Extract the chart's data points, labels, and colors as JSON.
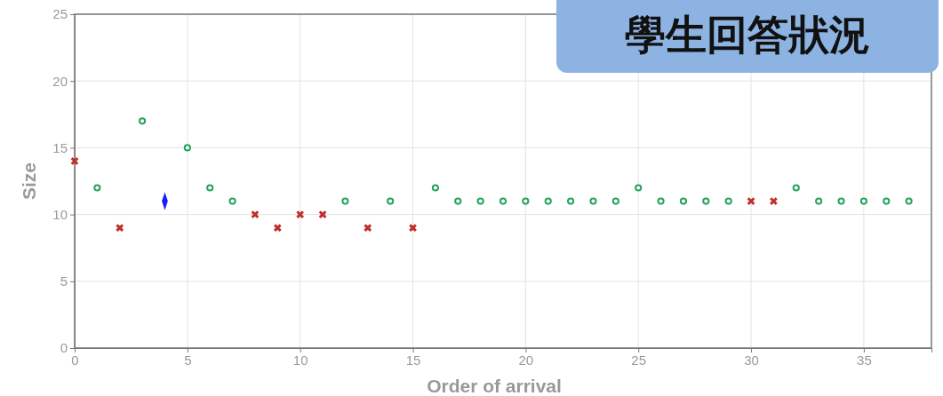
{
  "chart_data": {
    "type": "scatter",
    "title": "學生回答狀況",
    "xlabel": "Order of arrival",
    "ylabel": "Size",
    "xlim": [
      0,
      38
    ],
    "xticks": [
      0,
      5,
      10,
      15,
      20,
      25,
      30,
      35
    ],
    "ylim": [
      0,
      25
    ],
    "yticks": [
      0,
      5,
      10,
      15,
      20,
      25
    ],
    "grid": true,
    "series": [
      {
        "color": "#27a35a",
        "marker": "circle",
        "x": [
          1,
          3,
          5,
          6,
          7,
          12,
          14,
          16,
          17,
          18,
          19,
          20,
          21,
          22,
          23,
          24,
          25,
          26,
          27,
          28,
          29,
          32,
          33,
          34,
          35,
          36,
          37
        ],
        "values": [
          12,
          17,
          15,
          12,
          11,
          11,
          11,
          12,
          11,
          11,
          11,
          11,
          11,
          11,
          11,
          11,
          12,
          11,
          11,
          11,
          11,
          12,
          11,
          11,
          11,
          11,
          11
        ]
      },
      {
        "color": "#c0302a",
        "marker": "cross",
        "x": [
          0,
          2,
          8,
          9,
          10,
          11,
          13,
          15,
          30,
          31
        ],
        "values": [
          14,
          9,
          10,
          9,
          10,
          10,
          9,
          9,
          11,
          11
        ]
      },
      {
        "color": "#1a1aff",
        "marker": "diamond",
        "x": [
          4
        ],
        "values": [
          11
        ]
      }
    ]
  }
}
